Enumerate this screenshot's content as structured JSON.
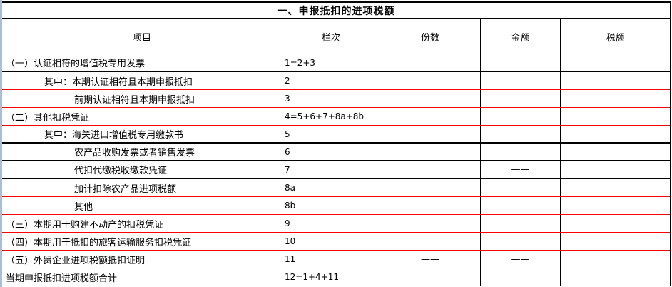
{
  "title": "一、申报抵扣的进项税额",
  "columns": [
    "项目",
    "栏次",
    "份数",
    "金额",
    "税额"
  ],
  "rows": [
    {
      "label": "（一）认证相符的增值税专用发票",
      "line": "1=2+3",
      "copies": "",
      "amount": "",
      "tax": ""
    },
    {
      "label": "其中：本期认证相符且本期申报抵扣",
      "line": "2",
      "copies": "",
      "amount": "",
      "tax": ""
    },
    {
      "label": "前期认证相符且本期申报抵扣",
      "line": "3",
      "copies": "",
      "amount": "",
      "tax": ""
    },
    {
      "label": "（二）其他扣税凭证",
      "line": "4=5+6+7+8a+8b",
      "copies": "",
      "amount": "",
      "tax": ""
    },
    {
      "label": "其中：海关进口增值税专用缴款书",
      "line": "5",
      "copies": "",
      "amount": "",
      "tax": ""
    },
    {
      "label": "农产品收购发票或者销售发票",
      "line": "6",
      "copies": "",
      "amount": "",
      "tax": ""
    },
    {
      "label": "代扣代缴税收缴款凭证",
      "line": "7",
      "copies": "",
      "amount": "——",
      "tax": ""
    },
    {
      "label": "加计扣除农产品进项税额",
      "line": "8a",
      "copies": "——",
      "amount": "——",
      "tax": ""
    },
    {
      "label": "其他",
      "line": "8b",
      "copies": "",
      "amount": "",
      "tax": ""
    },
    {
      "label": "（三）本期用于购建不动产的扣税凭证",
      "line": "9",
      "copies": "",
      "amount": "",
      "tax": ""
    },
    {
      "label": "（四）本期用于抵扣的旅客运输服务扣税凭证",
      "line": "10",
      "copies": "",
      "amount": "",
      "tax": ""
    },
    {
      "label": "（五）外贸企业进项税额抵扣证明",
      "line": "11",
      "copies": "——",
      "amount": "——",
      "tax": ""
    },
    {
      "label": "当期申报抵扣进项税额合计",
      "line": "12=1+4+11",
      "copies": "",
      "amount": "",
      "tax": ""
    }
  ],
  "colors": {
    "border_black": "#000000",
    "border_red": "#ff0000",
    "left_strip_blue": "#a9bed9",
    "background": "#ffffff",
    "text": "#000000"
  }
}
